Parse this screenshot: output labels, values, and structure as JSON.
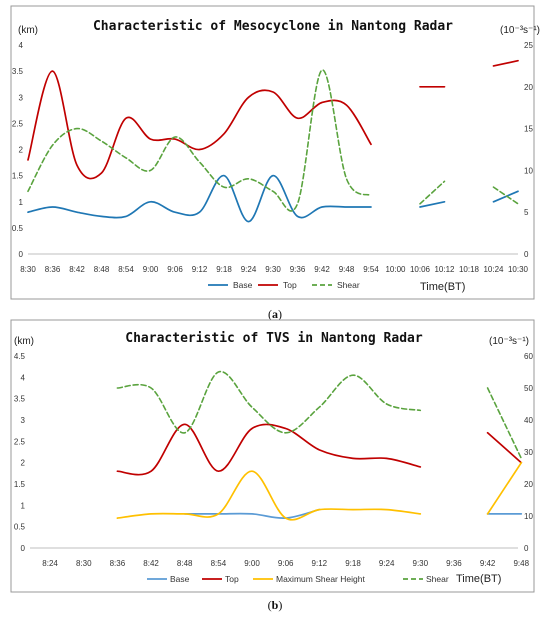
{
  "chart_data": [
    {
      "type": "line",
      "panel_label": "(a)",
      "title": "Characteristic of Mesocyclone in Nantong Radar",
      "left_unit": "(km)",
      "right_unit": "(10⁻³s⁻¹)",
      "time_label": "Time(BT)",
      "left_ylim": [
        0,
        4
      ],
      "right_ylim": [
        0,
        25
      ],
      "left_ticks": [
        "0",
        "0.5",
        "1",
        "1.5",
        "2",
        "2.5",
        "3",
        "3.5",
        "4"
      ],
      "right_ticks": [
        "0",
        "5",
        "10",
        "15",
        "20",
        "25"
      ],
      "categories": [
        "8:30",
        "8:36",
        "8:42",
        "8:48",
        "8:54",
        "9:00",
        "9:06",
        "9:12",
        "9:18",
        "9:24",
        "9:30",
        "9:36",
        "9:42",
        "9:48",
        "9:54",
        "10:00",
        "10:06",
        "10:12",
        "10:18",
        "10:24",
        "10:30"
      ],
      "series": [
        {
          "name": "Base",
          "color": "#1f77b4",
          "dash": false,
          "axis": "left",
          "segments": [
            [
              [
                0,
                0.8
              ],
              [
                1,
                0.9
              ],
              [
                2,
                0.8
              ],
              [
                3,
                0.72
              ],
              [
                4,
                0.72
              ],
              [
                5,
                1.0
              ],
              [
                6,
                0.8
              ],
              [
                7,
                0.8
              ],
              [
                8,
                1.5
              ],
              [
                9,
                0.62
              ],
              [
                10,
                1.5
              ],
              [
                11,
                0.72
              ],
              [
                12,
                0.9
              ],
              [
                13,
                0.9
              ],
              [
                14,
                0.9
              ]
            ],
            [
              [
                16,
                0.9
              ],
              [
                17,
                1.0
              ]
            ],
            [
              [
                19,
                1.0
              ],
              [
                20,
                1.2
              ]
            ]
          ]
        },
        {
          "name": "Top",
          "color": "#c00000",
          "dash": false,
          "axis": "left",
          "segments": [
            [
              [
                0,
                1.8
              ],
              [
                1,
                3.5
              ],
              [
                2,
                1.7
              ],
              [
                3,
                1.55
              ],
              [
                4,
                2.6
              ],
              [
                5,
                2.2
              ],
              [
                6,
                2.2
              ],
              [
                7,
                2.0
              ],
              [
                8,
                2.3
              ],
              [
                9,
                3.0
              ],
              [
                10,
                3.1
              ],
              [
                11,
                2.6
              ],
              [
                12,
                2.9
              ],
              [
                13,
                2.85
              ],
              [
                14,
                2.1
              ]
            ],
            [
              [
                16,
                3.2
              ],
              [
                17,
                3.2
              ]
            ],
            [
              [
                19,
                3.6
              ],
              [
                20,
                3.7
              ]
            ]
          ]
        },
        {
          "name": "Shear",
          "color": "#5aa33e",
          "dash": true,
          "axis": "right",
          "segments": [
            [
              [
                0,
                7.5
              ],
              [
                1,
                13
              ],
              [
                2,
                15
              ],
              [
                3,
                13.5
              ],
              [
                4,
                11.5
              ],
              [
                5,
                10
              ],
              [
                6,
                14
              ],
              [
                7,
                11
              ],
              [
                8,
                8
              ],
              [
                9,
                9
              ],
              [
                10,
                7.5
              ],
              [
                11,
                6
              ],
              [
                12,
                22
              ],
              [
                13,
                9
              ],
              [
                14,
                7
              ]
            ],
            [
              [
                16,
                6
              ],
              [
                17,
                8.7
              ]
            ],
            [
              [
                19,
                8
              ],
              [
                20,
                6
              ]
            ]
          ]
        }
      ]
    },
    {
      "type": "line",
      "panel_label": "(b)",
      "title": "Characteristic of TVS in Nantong Radar",
      "left_unit": "(km)",
      "right_unit": "(10⁻³s⁻¹)",
      "time_label": "Time(BT)",
      "left_ylim": [
        0,
        4.5
      ],
      "right_ylim": [
        0,
        60
      ],
      "left_ticks": [
        "0",
        "0.5",
        "1",
        "1.5",
        "2",
        "2.5",
        "3",
        "3.5",
        "4",
        "4.5"
      ],
      "right_ticks": [
        "0",
        "10",
        "20",
        "30",
        "40",
        "50",
        "60"
      ],
      "categories": [
        "8:24",
        "8:30",
        "8:36",
        "8:42",
        "8:48",
        "8:54",
        "9:00",
        "9:06",
        "9:12",
        "9:18",
        "9:24",
        "9:30",
        "9:36",
        "9:42",
        "9:48"
      ],
      "series": [
        {
          "name": "Base",
          "color": "#5b9bd5",
          "dash": false,
          "axis": "left",
          "segments": [
            [
              [
                4,
                0.8
              ],
              [
                5,
                0.8
              ],
              [
                6,
                0.8
              ],
              [
                7,
                0.7
              ],
              [
                8,
                0.9
              ]
            ],
            [
              [
                13,
                0.8
              ],
              [
                14,
                0.8
              ]
            ]
          ]
        },
        {
          "name": "Top",
          "color": "#c00000",
          "dash": false,
          "axis": "left",
          "segments": [
            [
              [
                2,
                1.8
              ],
              [
                3,
                1.8
              ],
              [
                4,
                2.9
              ],
              [
                5,
                1.8
              ],
              [
                6,
                2.8
              ],
              [
                7,
                2.8
              ],
              [
                8,
                2.3
              ],
              [
                9,
                2.1
              ],
              [
                10,
                2.1
              ],
              [
                11,
                1.9
              ]
            ],
            [
              [
                13,
                2.7
              ],
              [
                14,
                2.0
              ]
            ]
          ]
        },
        {
          "name": "Maximum Shear Height",
          "color": "#ffc000",
          "dash": false,
          "axis": "left",
          "segments": [
            [
              [
                2,
                0.7
              ],
              [
                3,
                0.8
              ],
              [
                4,
                0.8
              ],
              [
                5,
                0.8
              ],
              [
                6,
                1.8
              ],
              [
                7,
                0.7
              ],
              [
                8,
                0.9
              ],
              [
                9,
                0.9
              ],
              [
                10,
                0.9
              ],
              [
                11,
                0.8
              ]
            ],
            [
              [
                13,
                0.8
              ],
              [
                14,
                2.0
              ]
            ]
          ]
        },
        {
          "name": "Shear",
          "color": "#5aa33e",
          "dash": true,
          "axis": "right",
          "segments": [
            [
              [
                2,
                50
              ],
              [
                3,
                50
              ],
              [
                4,
                36
              ],
              [
                5,
                55
              ],
              [
                6,
                44
              ],
              [
                7,
                36
              ],
              [
                8,
                44
              ],
              [
                9,
                54
              ],
              [
                10,
                45
              ],
              [
                11,
                43
              ]
            ],
            [
              [
                13,
                50
              ],
              [
                14,
                28
              ]
            ]
          ]
        }
      ]
    }
  ]
}
